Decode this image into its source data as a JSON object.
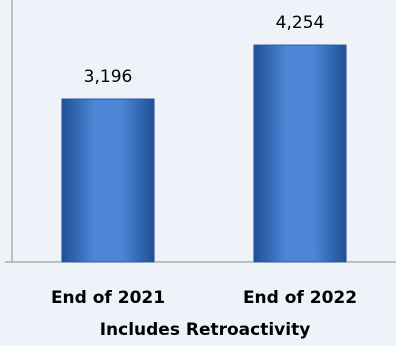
{
  "chart_data": {
    "type": "bar",
    "categories": [
      "End of 2021",
      "End of 2022"
    ],
    "values": [
      3196,
      4254
    ],
    "value_labels": [
      "3,196",
      "4,254"
    ],
    "color": "#3a72c4",
    "xlabel": "Includes Retroactivity",
    "ylim": [
      0,
      5000
    ]
  }
}
